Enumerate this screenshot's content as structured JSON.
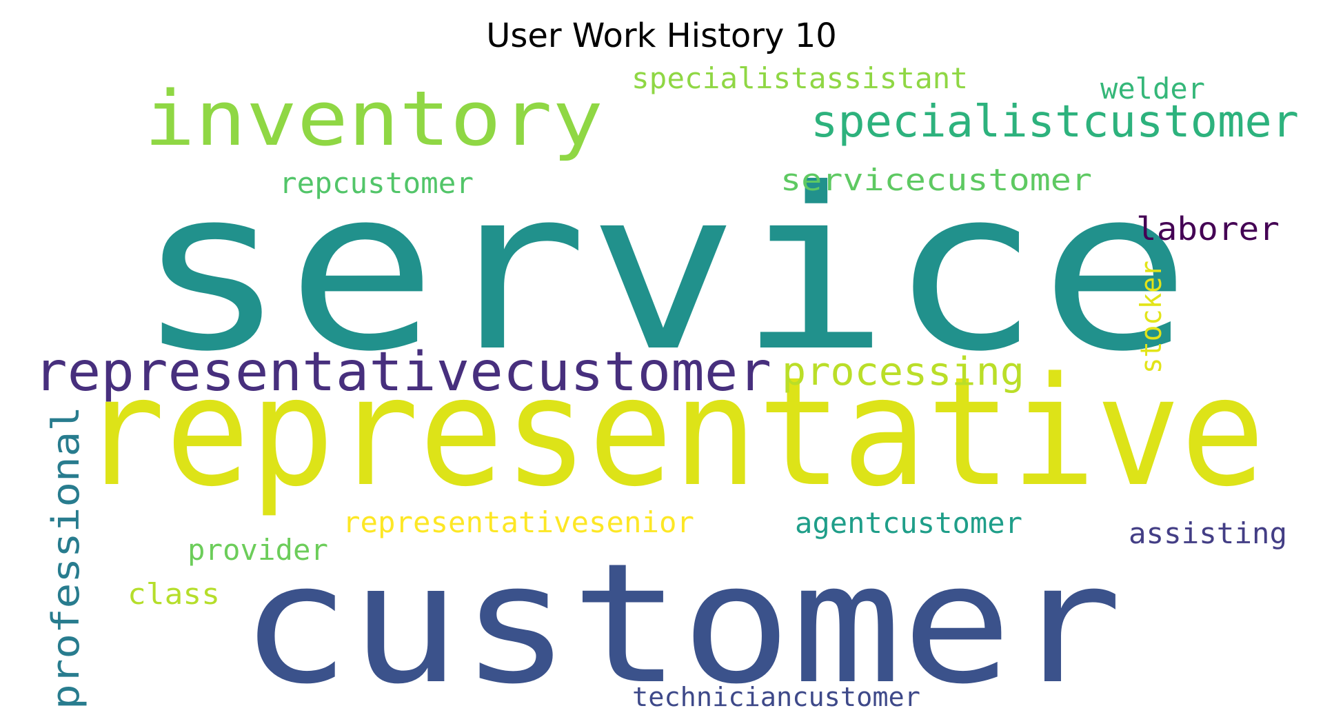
{
  "title": "User Work History 10",
  "words": [
    {
      "text": "service",
      "color": "#21918c"
    },
    {
      "text": "representative",
      "color": "#dde318"
    },
    {
      "text": "customer",
      "color": "#3b528b"
    },
    {
      "text": "inventory",
      "color": "#8fd744"
    },
    {
      "text": "representativecustomer",
      "color": "#472f7d"
    },
    {
      "text": "specialistcustomer",
      "color": "#2db27d"
    },
    {
      "text": "processing",
      "color": "#bade28"
    },
    {
      "text": "professional",
      "color": "#287c8e"
    },
    {
      "text": "specialistassistant",
      "color": "#8fd744"
    },
    {
      "text": "servicecustomer",
      "color": "#5ec962"
    },
    {
      "text": "welder",
      "color": "#35b779"
    },
    {
      "text": "repcustomer",
      "color": "#52c569"
    },
    {
      "text": "laborer",
      "color": "#440154"
    },
    {
      "text": "stocker",
      "color": "#e2e418"
    },
    {
      "text": "representativesenior",
      "color": "#fde725"
    },
    {
      "text": "agentcustomer",
      "color": "#1f9e89"
    },
    {
      "text": "assisting",
      "color": "#433e85"
    },
    {
      "text": "provider",
      "color": "#6ccd5a"
    },
    {
      "text": "class",
      "color": "#b5de2b"
    },
    {
      "text": "techniciancustomer",
      "color": "#3e4989"
    }
  ]
}
